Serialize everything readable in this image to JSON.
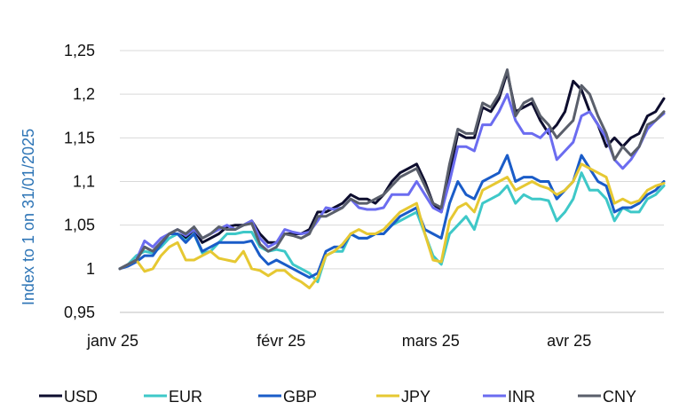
{
  "chart_data": {
    "type": "line",
    "title": "",
    "xlabel": "",
    "ylabel": "Index to 1 on 31/01/2025",
    "ylabel_color": "#2e75b6",
    "ylim": [
      0.95,
      1.25
    ],
    "yticks": [
      0.95,
      1.0,
      1.05,
      1.1,
      1.15,
      1.2,
      1.25
    ],
    "ytick_labels": [
      "0,95",
      "1",
      "1,05",
      "1,1",
      "1,15",
      "1,2",
      "1,25"
    ],
    "xlim": [
      0,
      60
    ],
    "xticks": [
      0,
      15,
      31,
      47
    ],
    "xtick_labels": [
      "janv 25",
      "févr 25",
      "mars 25",
      "avr 25"
    ],
    "grid": "horizontal",
    "legend": "bottom",
    "series": [
      {
        "name": "USD",
        "color": "#0d0d2e",
        "values": [
          1.0,
          1.005,
          1.01,
          1.025,
          1.02,
          1.03,
          1.04,
          1.04,
          1.035,
          1.045,
          1.03,
          1.035,
          1.04,
          1.048,
          1.05,
          1.05,
          1.055,
          1.04,
          1.03,
          1.03,
          1.04,
          1.04,
          1.04,
          1.045,
          1.065,
          1.065,
          1.07,
          1.075,
          1.085,
          1.08,
          1.08,
          1.075,
          1.085,
          1.1,
          1.11,
          1.115,
          1.12,
          1.1,
          1.075,
          1.065,
          1.11,
          1.155,
          1.15,
          1.15,
          1.185,
          1.18,
          1.195,
          1.225,
          1.18,
          1.185,
          1.19,
          1.17,
          1.155,
          1.165,
          1.18,
          1.215,
          1.205,
          1.18,
          1.165,
          1.14,
          1.15,
          1.14,
          1.15,
          1.155,
          1.175,
          1.18,
          1.195
        ]
      },
      {
        "name": "EUR",
        "color": "#3ec8c8",
        "values": [
          1.0,
          1.005,
          1.015,
          1.02,
          1.018,
          1.025,
          1.035,
          1.04,
          1.032,
          1.04,
          1.018,
          1.02,
          1.03,
          1.04,
          1.04,
          1.042,
          1.042,
          1.025,
          1.02,
          1.022,
          1.02,
          1.005,
          1.0,
          0.995,
          0.985,
          1.015,
          1.02,
          1.02,
          1.04,
          1.035,
          1.035,
          1.04,
          1.04,
          1.05,
          1.055,
          1.06,
          1.065,
          1.04,
          1.015,
          1.005,
          1.04,
          1.05,
          1.06,
          1.045,
          1.075,
          1.08,
          1.085,
          1.095,
          1.075,
          1.085,
          1.08,
          1.08,
          1.078,
          1.055,
          1.065,
          1.08,
          1.11,
          1.09,
          1.09,
          1.08,
          1.055,
          1.07,
          1.065,
          1.065,
          1.08,
          1.085,
          1.095
        ]
      },
      {
        "name": "GBP",
        "color": "#1a5cc8",
        "values": [
          1.0,
          1.003,
          1.008,
          1.015,
          1.015,
          1.028,
          1.04,
          1.04,
          1.03,
          1.04,
          1.02,
          1.025,
          1.03,
          1.03,
          1.03,
          1.03,
          1.032,
          1.015,
          1.005,
          1.01,
          1.005,
          1.0,
          0.995,
          0.99,
          0.995,
          1.02,
          1.025,
          1.025,
          1.04,
          1.035,
          1.035,
          1.04,
          1.04,
          1.05,
          1.06,
          1.065,
          1.07,
          1.045,
          1.04,
          1.035,
          1.075,
          1.1,
          1.085,
          1.08,
          1.1,
          1.105,
          1.11,
          1.13,
          1.1,
          1.105,
          1.105,
          1.1,
          1.1,
          1.08,
          1.09,
          1.1,
          1.13,
          1.115,
          1.1,
          1.095,
          1.065,
          1.07,
          1.07,
          1.075,
          1.085,
          1.09,
          1.1
        ]
      },
      {
        "name": "JPY",
        "color": "#e6c832",
        "values": [
          1.0,
          1.005,
          1.01,
          0.997,
          1.0,
          1.015,
          1.025,
          1.03,
          1.01,
          1.01,
          1.015,
          1.02,
          1.012,
          1.01,
          1.008,
          1.02,
          1.0,
          0.998,
          0.992,
          0.998,
          0.998,
          0.99,
          0.985,
          0.978,
          0.99,
          1.015,
          1.02,
          1.028,
          1.04,
          1.045,
          1.04,
          1.04,
          1.045,
          1.055,
          1.065,
          1.07,
          1.075,
          1.04,
          1.01,
          1.008,
          1.055,
          1.07,
          1.075,
          1.065,
          1.09,
          1.095,
          1.1,
          1.105,
          1.09,
          1.095,
          1.1,
          1.095,
          1.092,
          1.085,
          1.09,
          1.1,
          1.12,
          1.115,
          1.11,
          1.105,
          1.075,
          1.08,
          1.075,
          1.078,
          1.09,
          1.095,
          1.098
        ]
      },
      {
        "name": "INR",
        "color": "#6b6cf0",
        "values": [
          1.0,
          1.005,
          1.01,
          1.032,
          1.025,
          1.035,
          1.04,
          1.045,
          1.038,
          1.045,
          1.035,
          1.04,
          1.045,
          1.05,
          1.045,
          1.05,
          1.055,
          1.035,
          1.025,
          1.03,
          1.045,
          1.042,
          1.04,
          1.042,
          1.055,
          1.07,
          1.068,
          1.07,
          1.08,
          1.07,
          1.068,
          1.068,
          1.07,
          1.085,
          1.085,
          1.085,
          1.1,
          1.085,
          1.07,
          1.065,
          1.1,
          1.14,
          1.14,
          1.135,
          1.165,
          1.165,
          1.18,
          1.2,
          1.17,
          1.155,
          1.155,
          1.15,
          1.16,
          1.125,
          1.135,
          1.145,
          1.175,
          1.18,
          1.165,
          1.15,
          1.125,
          1.115,
          1.125,
          1.14,
          1.16,
          1.17,
          1.178
        ]
      },
      {
        "name": "CNY",
        "color": "#5a5f6b",
        "values": [
          1.0,
          1.005,
          1.01,
          1.025,
          1.02,
          1.03,
          1.04,
          1.045,
          1.04,
          1.048,
          1.035,
          1.04,
          1.048,
          1.045,
          1.045,
          1.05,
          1.052,
          1.028,
          1.02,
          1.025,
          1.04,
          1.038,
          1.035,
          1.04,
          1.06,
          1.06,
          1.065,
          1.07,
          1.08,
          1.075,
          1.075,
          1.08,
          1.085,
          1.095,
          1.105,
          1.11,
          1.115,
          1.095,
          1.075,
          1.07,
          1.12,
          1.16,
          1.155,
          1.155,
          1.19,
          1.185,
          1.2,
          1.228,
          1.175,
          1.19,
          1.195,
          1.175,
          1.165,
          1.15,
          1.16,
          1.17,
          1.21,
          1.2,
          1.175,
          1.155,
          1.125,
          1.14,
          1.13,
          1.14,
          1.165,
          1.17,
          1.18
        ]
      }
    ]
  }
}
